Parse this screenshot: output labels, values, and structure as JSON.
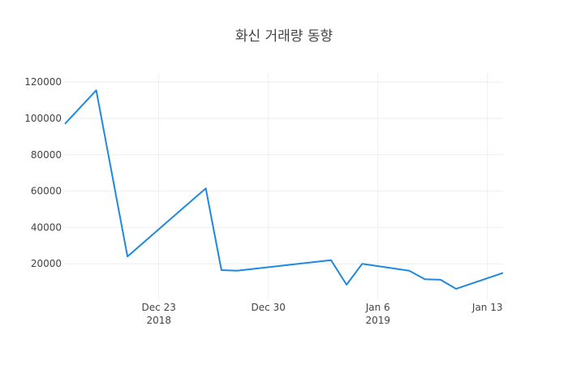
{
  "chart_data": {
    "type": "line",
    "title": "화신 거래량 동향",
    "xlabel": "",
    "ylabel": "",
    "x_range": [
      "2018-12-17",
      "2019-01-14"
    ],
    "ylim": [
      0,
      125000
    ],
    "grid": true,
    "legend": "none",
    "y_ticks": [
      20000,
      40000,
      60000,
      80000,
      100000,
      120000
    ],
    "x_ticks": [
      {
        "date": "2018-12-23",
        "label": "Dec 23",
        "sublabel": "2018"
      },
      {
        "date": "2018-12-30",
        "label": "Dec 30",
        "sublabel": ""
      },
      {
        "date": "2019-01-06",
        "label": "Jan 6",
        "sublabel": "2019"
      },
      {
        "date": "2019-01-13",
        "label": "Jan 13",
        "sublabel": ""
      }
    ],
    "series": [
      {
        "color": "#1f88e0",
        "points": [
          {
            "x": "2018-12-17",
            "y": 97000
          },
          {
            "x": "2018-12-19",
            "y": 115500
          },
          {
            "x": "2018-12-21",
            "y": 24000
          },
          {
            "x": "2018-12-26",
            "y": 61500
          },
          {
            "x": "2018-12-27",
            "y": 16500
          },
          {
            "x": "2018-12-28",
            "y": 16200
          },
          {
            "x": "2019-01-03",
            "y": 22000
          },
          {
            "x": "2019-01-04",
            "y": 8500
          },
          {
            "x": "2019-01-05",
            "y": 20000
          },
          {
            "x": "2019-01-08",
            "y": 16200
          },
          {
            "x": "2019-01-09",
            "y": 11500
          },
          {
            "x": "2019-01-10",
            "y": 11200
          },
          {
            "x": "2019-01-11",
            "y": 6200
          },
          {
            "x": "2019-01-14",
            "y": 15000
          }
        ]
      }
    ]
  }
}
